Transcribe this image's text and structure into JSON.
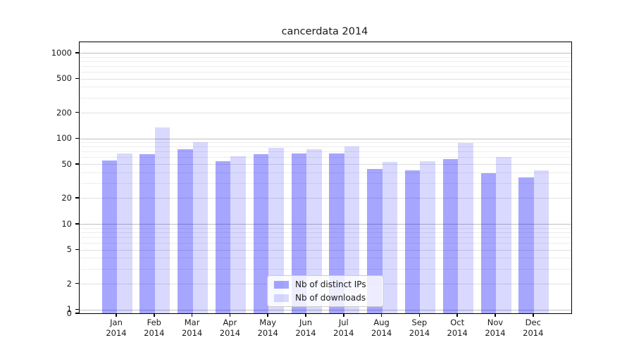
{
  "chart_data": {
    "type": "bar",
    "title": "cancerdata 2014",
    "y_scale": "symlog",
    "grid": "on",
    "legend_position": "inside-lower-center",
    "ylim": [
      0,
      1300
    ],
    "y_ticks": [
      0,
      1,
      2,
      5,
      10,
      20,
      50,
      100,
      200,
      500,
      1000
    ],
    "x_tick_labels": {
      "months": [
        "Jan",
        "Feb",
        "Mar",
        "Apr",
        "May",
        "Jun",
        "Jul",
        "Aug",
        "Sep",
        "Oct",
        "Nov",
        "Dec"
      ],
      "year": "2014"
    },
    "categories": [
      "Jan 2014",
      "Feb 2014",
      "Mar 2014",
      "Apr 2014",
      "May 2014",
      "Jun 2014",
      "Jul 2014",
      "Aug 2014",
      "Sep 2014",
      "Oct 2014",
      "Nov 2014",
      "Dec 2014"
    ],
    "series": [
      {
        "name": "Nb of distinct IPs",
        "color_hex": "#a6a6ff",
        "color_rgba": "rgba(0,0,255,0.35)",
        "values": [
          55,
          65,
          75,
          54,
          65,
          66,
          66,
          44,
          42,
          57,
          39,
          35
        ]
      },
      {
        "name": "Nb of downloads",
        "color_hex": "#d9d9ff",
        "color_rgba": "rgba(0,0,255,0.15)",
        "values": [
          66,
          135,
          90,
          62,
          78,
          75,
          81,
          53,
          54,
          88,
          61,
          42
        ]
      }
    ]
  }
}
